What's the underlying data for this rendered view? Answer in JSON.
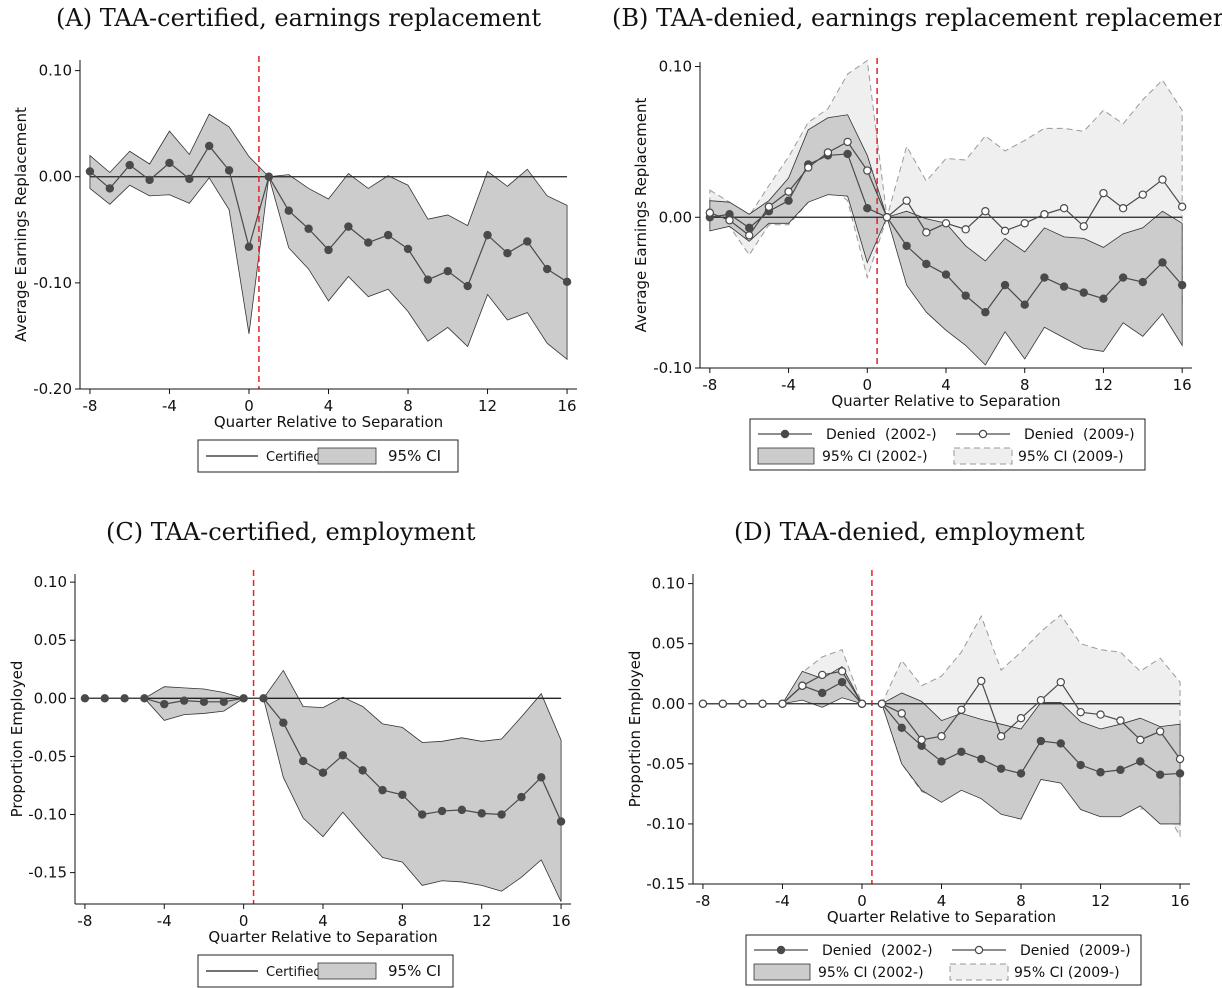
{
  "panels": [
    {
      "id": "A",
      "title": "(A) TAA-certified, earnings replacement",
      "xlabel": "Quarter Relative to Separation",
      "ylabel": "Average Earnings Replacement",
      "legend": {
        "line": "Certified",
        "ci": "95% CI"
      }
    },
    {
      "id": "B",
      "title": "(B) TAA-denied, earnings replacement replacement",
      "xlabel": "Quarter Relative to Separation",
      "ylabel": "Average Earnings Replacement",
      "legend": {
        "s1": "Denied",
        "s1_tag": "(2002-)",
        "s2": "Denied",
        "s2_tag": "(2009-)",
        "ci1": "95% CI (2002-)",
        "ci2": "95% CI (2009-)"
      }
    },
    {
      "id": "C",
      "title": "(C) TAA-certified, employment",
      "xlabel": "Quarter Relative to Separation",
      "ylabel": "Proportion Employed",
      "legend": {
        "line": "Certified",
        "ci": "95% CI"
      }
    },
    {
      "id": "D",
      "title": "(D) TAA-denied, employment",
      "xlabel": "Quarter Relative to Separation",
      "ylabel": "Proportion Employed",
      "legend": {
        "s1": "Denied",
        "s1_tag": "(2002-)",
        "s2": "Denied",
        "s2_tag": "(2009-)",
        "ci1": "95% CI (2002-)",
        "ci2": "95% CI (2009-)"
      }
    }
  ],
  "colors": {
    "marker": "#4a4a4a",
    "ci_dark": "#cccccc",
    "ci_light": "#efefef",
    "ci_light_border": "#9a9a9a",
    "ref_line": "#e0242b",
    "zero_line": "#222222"
  },
  "chart_data": [
    {
      "panel": "A",
      "type": "line",
      "x": [
        -8,
        -7,
        -6,
        -5,
        -4,
        -3,
        -2,
        -1,
        0,
        1,
        2,
        3,
        4,
        5,
        6,
        7,
        8,
        9,
        10,
        11,
        12,
        13,
        14,
        15,
        16
      ],
      "series": [
        {
          "name": "Certified",
          "marker": "filled",
          "values": [
            0.005,
            -0.011,
            0.011,
            -0.003,
            0.013,
            -0.002,
            0.029,
            0.006,
            -0.066,
            0.0,
            -0.032,
            -0.049,
            -0.069,
            -0.047,
            -0.062,
            -0.055,
            -0.068,
            -0.097,
            -0.089,
            -0.103,
            -0.055,
            -0.072,
            -0.061,
            -0.087,
            -0.099
          ],
          "ci_low": [
            -0.011,
            -0.026,
            -0.008,
            -0.018,
            -0.017,
            -0.025,
            -0.001,
            -0.031,
            -0.148,
            0.0,
            -0.067,
            -0.087,
            -0.117,
            -0.094,
            -0.113,
            -0.106,
            -0.127,
            -0.155,
            -0.142,
            -0.16,
            -0.111,
            -0.135,
            -0.128,
            -0.157,
            -0.172
          ],
          "ci_high": [
            0.02,
            0.004,
            0.024,
            0.012,
            0.043,
            0.021,
            0.059,
            0.047,
            0.019,
            0.0,
            0.002,
            -0.011,
            -0.021,
            0.003,
            -0.011,
            0.001,
            -0.008,
            -0.04,
            -0.036,
            -0.046,
            0.005,
            -0.009,
            0.007,
            -0.018,
            -0.027
          ]
        }
      ],
      "ylim": [
        -0.2,
        0.11
      ],
      "yticks": [
        0.1,
        0.0,
        -0.1,
        -0.2
      ],
      "ytick_labels": [
        "0.10",
        "0.00",
        "-0.10",
        "-0.20"
      ],
      "xlim": [
        -8.5,
        16.5
      ],
      "xticks": [
        -8,
        -4,
        0,
        4,
        8,
        12,
        16
      ],
      "vline": 0.5
    },
    {
      "panel": "B",
      "type": "line",
      "x": [
        -8,
        -7,
        -6,
        -5,
        -4,
        -3,
        -2,
        -1,
        0,
        1,
        2,
        3,
        4,
        5,
        6,
        7,
        8,
        9,
        10,
        11,
        12,
        13,
        14,
        15,
        16
      ],
      "series": [
        {
          "name": "Denied (2002-)",
          "marker": "filled",
          "values": [
            0.0,
            0.002,
            -0.007,
            0.004,
            0.011,
            0.035,
            0.041,
            0.042,
            0.006,
            0.0,
            -0.019,
            -0.031,
            -0.038,
            -0.052,
            -0.063,
            -0.045,
            -0.058,
            -0.04,
            -0.046,
            -0.05,
            -0.054,
            -0.04,
            -0.043,
            -0.03,
            -0.045
          ],
          "ci_low": [
            -0.009,
            -0.006,
            -0.016,
            -0.004,
            -0.004,
            0.01,
            0.015,
            0.014,
            -0.03,
            0.0,
            -0.045,
            -0.063,
            -0.075,
            -0.085,
            -0.098,
            -0.076,
            -0.094,
            -0.073,
            -0.08,
            -0.087,
            -0.089,
            -0.07,
            -0.079,
            -0.064,
            -0.085
          ],
          "ci_high": [
            0.011,
            0.01,
            0.002,
            0.011,
            0.026,
            0.058,
            0.066,
            0.068,
            0.041,
            0.0,
            0.004,
            -0.001,
            -0.004,
            -0.019,
            -0.029,
            -0.014,
            -0.023,
            -0.007,
            -0.013,
            -0.014,
            -0.02,
            -0.011,
            -0.007,
            0.004,
            -0.004
          ]
        },
        {
          "name": "Denied (2009-)",
          "marker": "hollow",
          "values": [
            0.003,
            -0.002,
            -0.012,
            0.007,
            0.017,
            0.033,
            0.043,
            0.05,
            0.031,
            0.0,
            0.011,
            -0.01,
            -0.004,
            -0.008,
            0.004,
            -0.009,
            -0.004,
            0.002,
            0.006,
            -0.006,
            0.016,
            0.006,
            0.015,
            0.025,
            0.007
          ],
          "ci_low": [
            -0.002,
            -0.006,
            -0.025,
            -0.005,
            -0.005,
            0.01,
            0.021,
            0.011,
            -0.04,
            0.0,
            -0.022,
            -0.045,
            -0.048,
            -0.055,
            -0.047,
            -0.064,
            -0.061,
            -0.054,
            -0.05,
            -0.065,
            -0.04,
            -0.052,
            -0.047,
            -0.039,
            -0.055
          ],
          "ci_high": [
            0.018,
            0.01,
            0.001,
            0.021,
            0.04,
            0.063,
            0.072,
            0.095,
            0.104,
            0.0,
            0.047,
            0.024,
            0.039,
            0.038,
            0.054,
            0.044,
            0.051,
            0.059,
            0.059,
            0.057,
            0.071,
            0.062,
            0.078,
            0.091,
            0.071
          ]
        }
      ],
      "ylim": [
        -0.1,
        0.103
      ],
      "yticks": [
        0.1,
        0.0,
        -0.1
      ],
      "ytick_labels": [
        "0.10",
        "0.00",
        "-0.10"
      ],
      "xlim": [
        -8.5,
        16.5
      ],
      "xticks": [
        -8,
        -4,
        0,
        4,
        8,
        12,
        16
      ],
      "vline": 0.5
    },
    {
      "panel": "C",
      "type": "line",
      "x": [
        -8,
        -7,
        -6,
        -5,
        -4,
        -3,
        -2,
        -1,
        0,
        1,
        2,
        3,
        4,
        5,
        6,
        7,
        8,
        9,
        10,
        11,
        12,
        13,
        14,
        15,
        16
      ],
      "series": [
        {
          "name": "Certified",
          "marker": "filled",
          "values": [
            0.0,
            0.0,
            0.0,
            0.0,
            -0.005,
            -0.002,
            -0.003,
            -0.003,
            0.0,
            0.0,
            -0.021,
            -0.054,
            -0.064,
            -0.049,
            -0.062,
            -0.079,
            -0.083,
            -0.1,
            -0.097,
            -0.096,
            -0.099,
            -0.1,
            -0.085,
            -0.068,
            -0.106
          ],
          "ci_low": [
            0.0,
            0.0,
            0.0,
            0.0,
            -0.019,
            -0.014,
            -0.013,
            -0.011,
            0.0,
            0.0,
            -0.068,
            -0.103,
            -0.119,
            -0.098,
            -0.118,
            -0.137,
            -0.141,
            -0.161,
            -0.157,
            -0.158,
            -0.161,
            -0.166,
            -0.154,
            -0.139,
            -0.175
          ],
          "ci_high": [
            0.0,
            0.0,
            0.0,
            0.0,
            0.01,
            0.009,
            0.008,
            0.005,
            0.0,
            0.0,
            0.024,
            -0.007,
            -0.008,
            0.001,
            -0.007,
            -0.022,
            -0.025,
            -0.038,
            -0.037,
            -0.034,
            -0.037,
            -0.035,
            -0.016,
            0.004,
            -0.036
          ]
        }
      ],
      "ylim": [
        -0.177,
        0.107
      ],
      "yticks": [
        0.1,
        0.05,
        0.0,
        -0.05,
        -0.1,
        -0.15
      ],
      "ytick_labels": [
        "0.10",
        "0.05",
        "0.00",
        "-0.05",
        "-0.10",
        "-0.15"
      ],
      "xlim": [
        -8.5,
        16.5
      ],
      "xticks": [
        -8,
        -4,
        0,
        4,
        8,
        12,
        16
      ],
      "vline": 0.5
    },
    {
      "panel": "D",
      "type": "line",
      "x": [
        -8,
        -7,
        -6,
        -5,
        -4,
        -3,
        -2,
        -1,
        0,
        1,
        2,
        3,
        4,
        5,
        6,
        7,
        8,
        9,
        10,
        11,
        12,
        13,
        14,
        15,
        16
      ],
      "series": [
        {
          "name": "Denied (2002-)",
          "marker": "filled",
          "values": [
            0.0,
            0.0,
            0.0,
            0.0,
            0.0,
            0.015,
            0.009,
            0.018,
            0.0,
            0.0,
            -0.02,
            -0.035,
            -0.048,
            -0.04,
            -0.046,
            -0.054,
            -0.058,
            -0.031,
            -0.033,
            -0.051,
            -0.057,
            -0.055,
            -0.048,
            -0.059,
            -0.058
          ],
          "ci_low": [
            0.0,
            0.0,
            0.0,
            0.0,
            0.0,
            0.003,
            -0.003,
            0.005,
            0.0,
            0.0,
            -0.05,
            -0.072,
            -0.082,
            -0.072,
            -0.079,
            -0.092,
            -0.096,
            -0.063,
            -0.066,
            -0.088,
            -0.094,
            -0.094,
            -0.085,
            -0.1,
            -0.1
          ],
          "ci_high": [
            0.0,
            0.0,
            0.0,
            0.0,
            0.0,
            0.027,
            0.021,
            0.031,
            0.0,
            0.0,
            0.009,
            0.002,
            -0.014,
            -0.008,
            -0.013,
            -0.017,
            -0.021,
            0.001,
            0.001,
            -0.015,
            -0.021,
            -0.017,
            -0.012,
            -0.019,
            -0.017
          ]
        },
        {
          "name": "Denied (2009-)",
          "marker": "hollow",
          "values": [
            0.0,
            0.0,
            0.0,
            0.0,
            0.0,
            0.015,
            0.024,
            0.027,
            0.0,
            0.0,
            -0.008,
            -0.03,
            -0.027,
            -0.005,
            0.019,
            -0.027,
            -0.012,
            0.003,
            0.018,
            -0.007,
            -0.009,
            -0.014,
            -0.03,
            -0.023,
            -0.046
          ],
          "ci_low": [
            0.0,
            0.0,
            0.0,
            0.0,
            0.0,
            0.004,
            0.008,
            0.01,
            0.0,
            0.0,
            -0.05,
            -0.073,
            -0.08,
            -0.057,
            -0.035,
            -0.082,
            -0.069,
            -0.053,
            -0.036,
            -0.063,
            -0.067,
            -0.07,
            -0.088,
            -0.082,
            -0.11
          ],
          "ci_high": [
            0.0,
            0.0,
            0.0,
            0.0,
            0.0,
            0.026,
            0.039,
            0.045,
            0.0,
            0.0,
            0.036,
            0.015,
            0.023,
            0.043,
            0.073,
            0.028,
            0.043,
            0.06,
            0.074,
            0.05,
            0.045,
            0.043,
            0.027,
            0.038,
            0.018
          ]
        }
      ],
      "ylim": [
        -0.15,
        0.108
      ],
      "yticks": [
        0.1,
        0.05,
        0.0,
        -0.05,
        -0.1,
        -0.15
      ],
      "ytick_labels": [
        "0.10",
        "0.05",
        "0.00",
        "-0.05",
        "-0.10",
        "-0.15"
      ],
      "xlim": [
        -8.5,
        16.5
      ],
      "xticks": [
        -8,
        -4,
        0,
        4,
        8,
        12,
        16
      ],
      "vline": 0.5
    }
  ]
}
